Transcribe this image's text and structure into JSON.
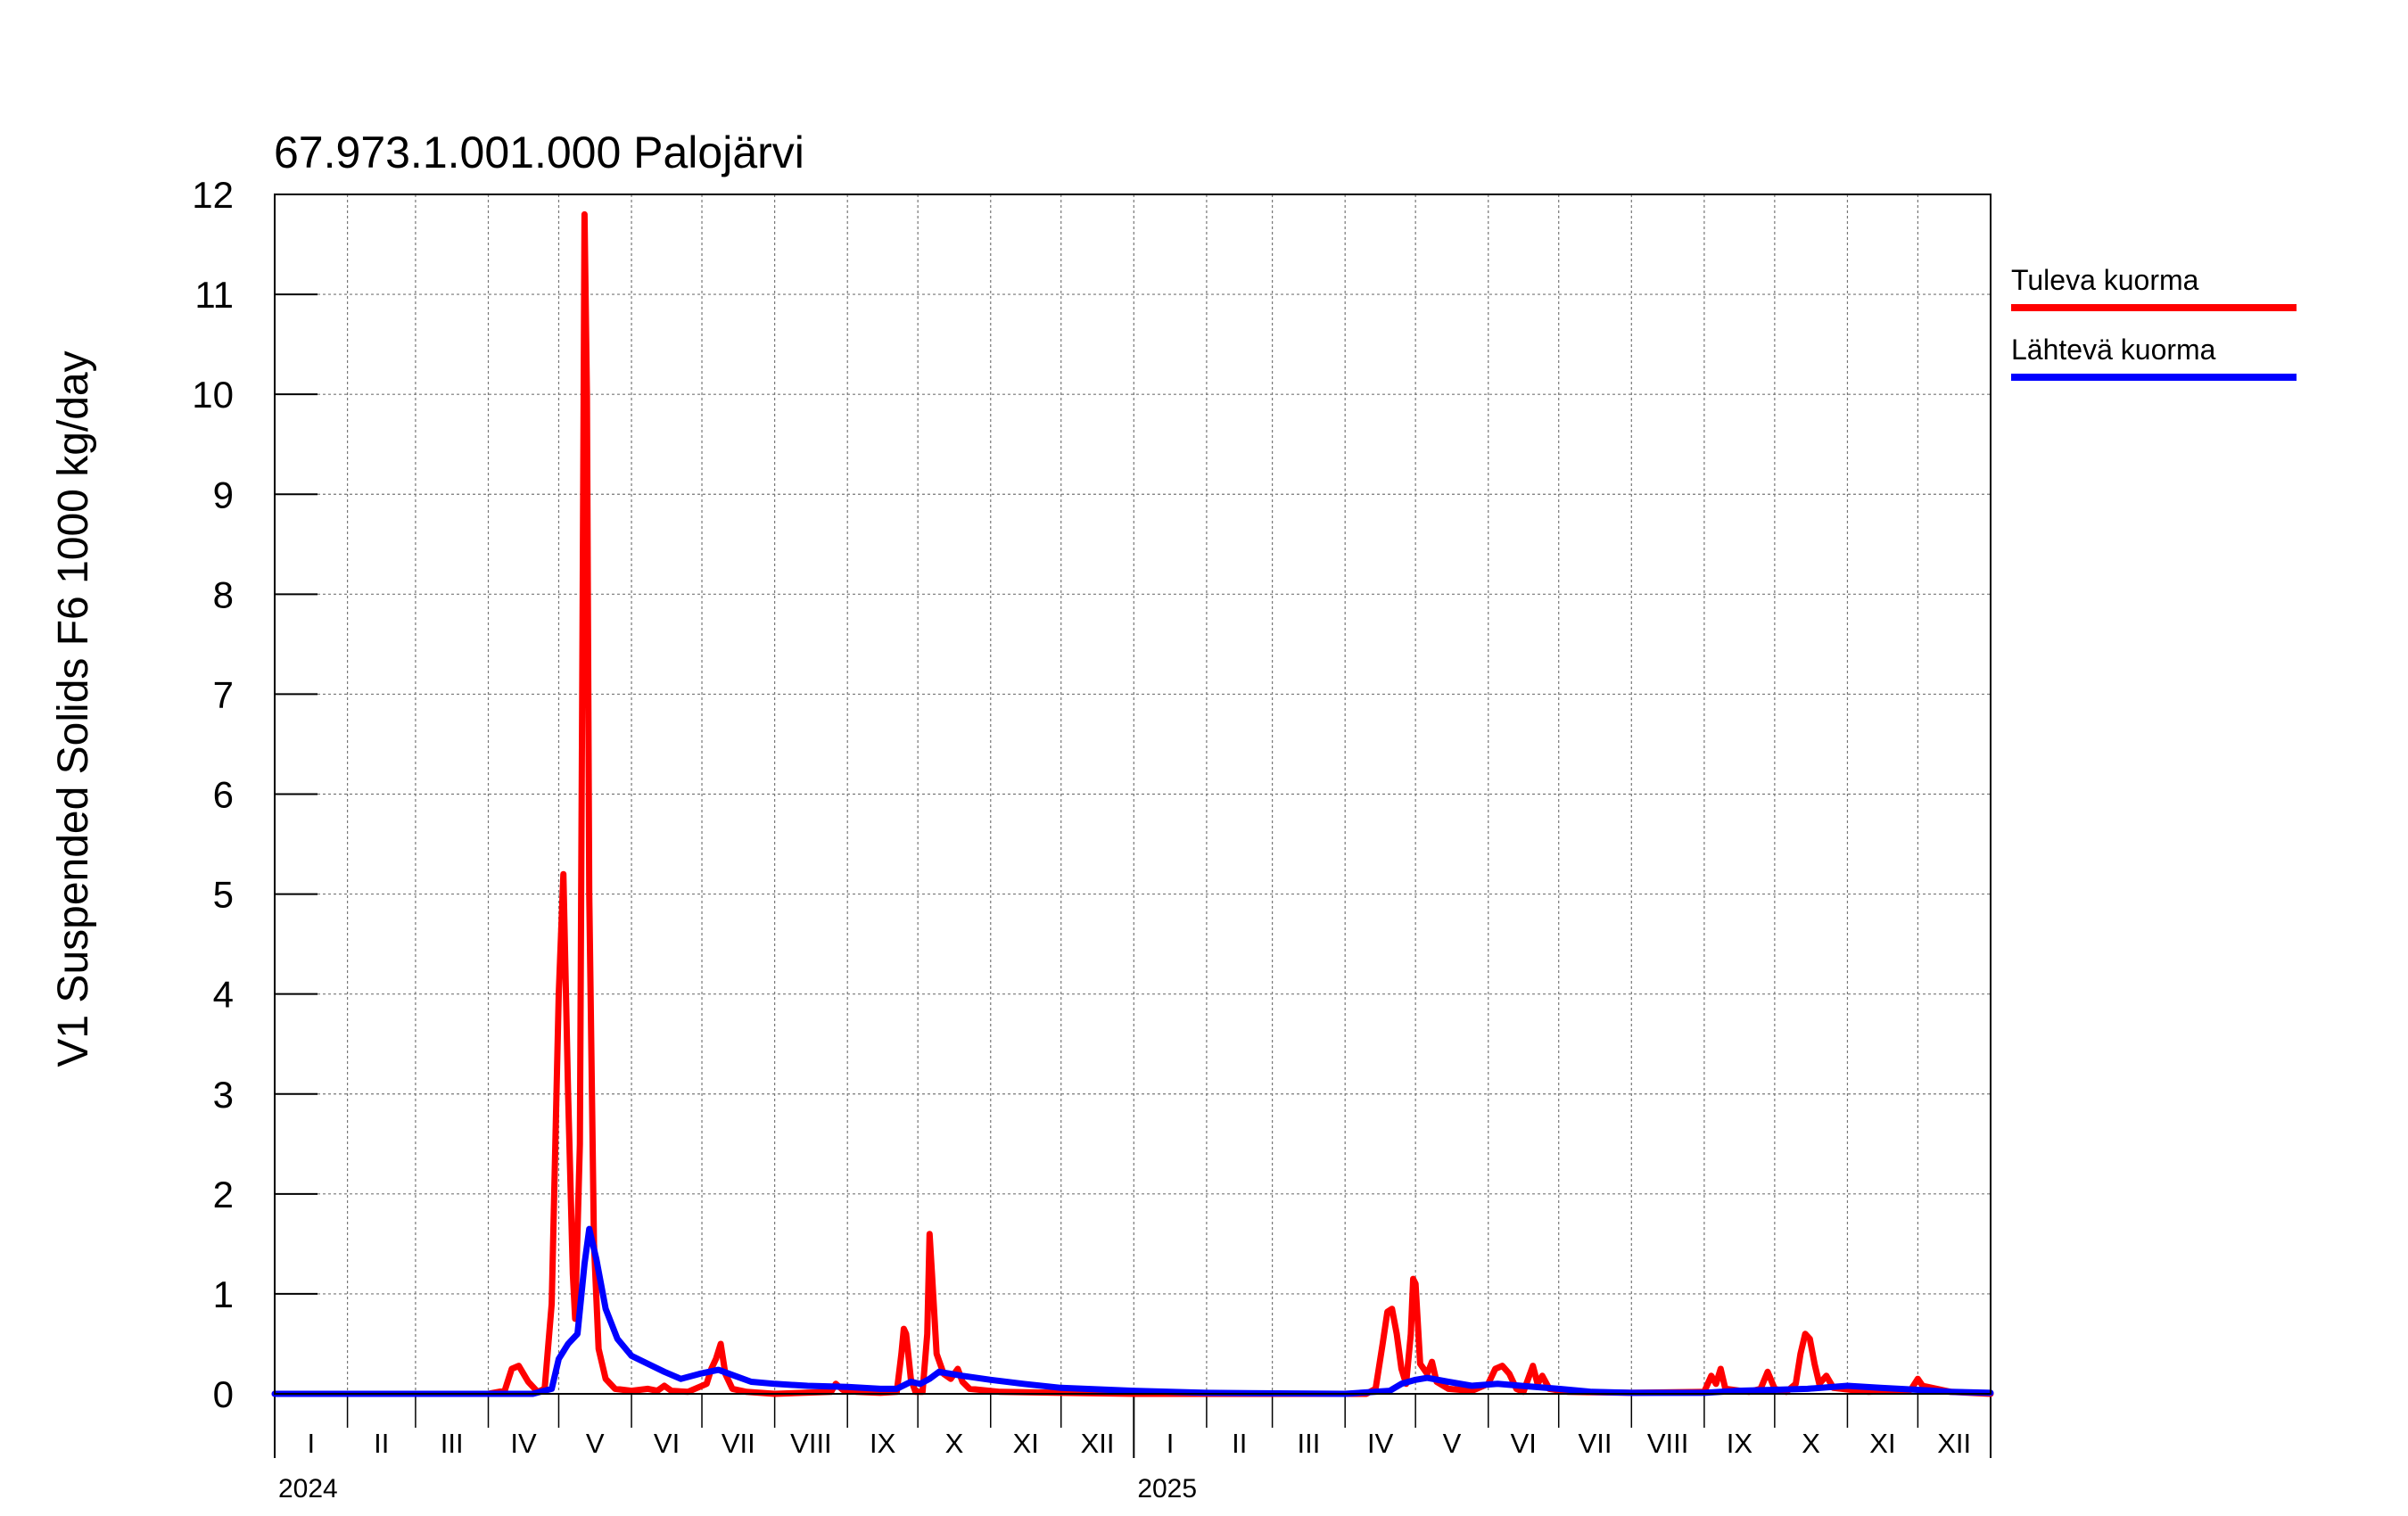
{
  "chart_data": {
    "type": "line",
    "title": "67.973.1.001.000 Palojärvi",
    "ylabel": "V1 Suspended Solids F6 1000 kg/day",
    "xlabel": "",
    "ylim": [
      0,
      12
    ],
    "yticks": [
      0,
      1,
      2,
      3,
      4,
      5,
      6,
      7,
      8,
      9,
      10,
      11,
      12
    ],
    "xlim": [
      "2024-01-01",
      "2026-01-01"
    ],
    "year_labels": [
      {
        "label": "2024",
        "date": "2024-01-01"
      },
      {
        "label": "2025",
        "date": "2025-01-01"
      }
    ],
    "month_labels": [
      "I",
      "II",
      "III",
      "IV",
      "V",
      "VI",
      "VII",
      "VIII",
      "IX",
      "X",
      "XI",
      "XII"
    ],
    "grid": true,
    "legend": "right",
    "series": [
      {
        "name": "Tuleva kuorma",
        "color": "#ff0000",
        "points": [
          [
            "2024-01-01",
            0.0
          ],
          [
            "2024-04-01",
            0.0
          ],
          [
            "2024-04-08",
            0.03
          ],
          [
            "2024-04-11",
            0.25
          ],
          [
            "2024-04-14",
            0.28
          ],
          [
            "2024-04-18",
            0.12
          ],
          [
            "2024-04-22",
            0.02
          ],
          [
            "2024-04-25",
            0.05
          ],
          [
            "2024-04-28",
            0.9
          ],
          [
            "2024-05-01",
            4.0
          ],
          [
            "2024-05-03",
            5.2
          ],
          [
            "2024-05-05",
            3.0
          ],
          [
            "2024-05-07",
            1.2
          ],
          [
            "2024-05-08",
            0.75
          ],
          [
            "2024-05-10",
            2.5
          ],
          [
            "2024-05-11",
            7.0
          ],
          [
            "2024-05-12",
            11.8
          ],
          [
            "2024-05-13",
            10.0
          ],
          [
            "2024-05-14",
            5.0
          ],
          [
            "2024-05-16",
            1.5
          ],
          [
            "2024-05-18",
            0.45
          ],
          [
            "2024-05-21",
            0.15
          ],
          [
            "2024-05-25",
            0.05
          ],
          [
            "2024-06-01",
            0.03
          ],
          [
            "2024-06-08",
            0.05
          ],
          [
            "2024-06-12",
            0.03
          ],
          [
            "2024-06-15",
            0.08
          ],
          [
            "2024-06-18",
            0.03
          ],
          [
            "2024-06-25",
            0.02
          ],
          [
            "2024-07-03",
            0.1
          ],
          [
            "2024-07-05",
            0.25
          ],
          [
            "2024-07-07",
            0.35
          ],
          [
            "2024-07-09",
            0.5
          ],
          [
            "2024-07-11",
            0.2
          ],
          [
            "2024-07-14",
            0.05
          ],
          [
            "2024-07-20",
            0.02
          ],
          [
            "2024-08-01",
            0.0
          ],
          [
            "2024-08-25",
            0.02
          ],
          [
            "2024-08-27",
            0.1
          ],
          [
            "2024-08-30",
            0.04
          ],
          [
            "2024-09-05",
            0.02
          ],
          [
            "2024-09-15",
            0.01
          ],
          [
            "2024-09-22",
            0.02
          ],
          [
            "2024-09-24",
            0.4
          ],
          [
            "2024-09-25",
            0.65
          ],
          [
            "2024-09-26",
            0.6
          ],
          [
            "2024-09-28",
            0.15
          ],
          [
            "2024-09-30",
            0.02
          ],
          [
            "2024-10-03",
            0.02
          ],
          [
            "2024-10-05",
            0.6
          ],
          [
            "2024-10-06",
            1.6
          ],
          [
            "2024-10-07",
            1.2
          ],
          [
            "2024-10-09",
            0.4
          ],
          [
            "2024-10-12",
            0.2
          ],
          [
            "2024-10-15",
            0.15
          ],
          [
            "2024-10-18",
            0.25
          ],
          [
            "2024-10-20",
            0.12
          ],
          [
            "2024-10-23",
            0.05
          ],
          [
            "2024-11-05",
            0.02
          ],
          [
            "2024-12-01",
            0.01
          ],
          [
            "2025-01-01",
            0.0
          ],
          [
            "2025-04-10",
            0.0
          ],
          [
            "2025-04-14",
            0.05
          ],
          [
            "2025-04-17",
            0.5
          ],
          [
            "2025-04-19",
            0.82
          ],
          [
            "2025-04-21",
            0.85
          ],
          [
            "2025-04-23",
            0.6
          ],
          [
            "2025-04-25",
            0.25
          ],
          [
            "2025-04-27",
            0.1
          ],
          [
            "2025-04-29",
            0.6
          ],
          [
            "2025-04-30",
            1.15
          ],
          [
            "2025-05-01",
            1.1
          ],
          [
            "2025-05-03",
            0.3
          ],
          [
            "2025-05-06",
            0.2
          ],
          [
            "2025-05-08",
            0.32
          ],
          [
            "2025-05-10",
            0.12
          ],
          [
            "2025-05-15",
            0.05
          ],
          [
            "2025-05-25",
            0.03
          ],
          [
            "2025-06-01",
            0.1
          ],
          [
            "2025-06-04",
            0.25
          ],
          [
            "2025-06-07",
            0.28
          ],
          [
            "2025-06-10",
            0.2
          ],
          [
            "2025-06-13",
            0.05
          ],
          [
            "2025-06-16",
            0.02
          ],
          [
            "2025-06-18",
            0.15
          ],
          [
            "2025-06-20",
            0.28
          ],
          [
            "2025-06-22",
            0.1
          ],
          [
            "2025-06-24",
            0.18
          ],
          [
            "2025-06-27",
            0.05
          ],
          [
            "2025-07-05",
            0.02
          ],
          [
            "2025-08-01",
            0.01
          ],
          [
            "2025-09-01",
            0.02
          ],
          [
            "2025-09-04",
            0.18
          ],
          [
            "2025-09-06",
            0.1
          ],
          [
            "2025-09-08",
            0.25
          ],
          [
            "2025-09-10",
            0.05
          ],
          [
            "2025-09-20",
            0.02
          ],
          [
            "2025-09-25",
            0.05
          ],
          [
            "2025-09-28",
            0.22
          ],
          [
            "2025-10-01",
            0.05
          ],
          [
            "2025-10-06",
            0.02
          ],
          [
            "2025-10-10",
            0.1
          ],
          [
            "2025-10-12",
            0.4
          ],
          [
            "2025-10-14",
            0.6
          ],
          [
            "2025-10-16",
            0.55
          ],
          [
            "2025-10-18",
            0.3
          ],
          [
            "2025-10-20",
            0.1
          ],
          [
            "2025-10-23",
            0.18
          ],
          [
            "2025-10-26",
            0.06
          ],
          [
            "2025-11-10",
            0.02
          ],
          [
            "2025-11-28",
            0.04
          ],
          [
            "2025-12-01",
            0.15
          ],
          [
            "2025-12-03",
            0.08
          ],
          [
            "2025-12-15",
            0.02
          ],
          [
            "2026-01-01",
            0.0
          ]
        ]
      },
      {
        "name": "Lähtevä kuorma",
        "color": "#0000ff",
        "points": [
          [
            "2024-01-01",
            0.0
          ],
          [
            "2024-04-20",
            0.0
          ],
          [
            "2024-04-28",
            0.05
          ],
          [
            "2024-05-01",
            0.35
          ],
          [
            "2024-05-05",
            0.5
          ],
          [
            "2024-05-09",
            0.6
          ],
          [
            "2024-05-12",
            1.3
          ],
          [
            "2024-05-14",
            1.65
          ],
          [
            "2024-05-17",
            1.35
          ],
          [
            "2024-05-21",
            0.85
          ],
          [
            "2024-05-26",
            0.55
          ],
          [
            "2024-06-01",
            0.38
          ],
          [
            "2024-06-08",
            0.3
          ],
          [
            "2024-06-15",
            0.22
          ],
          [
            "2024-06-22",
            0.15
          ],
          [
            "2024-06-30",
            0.2
          ],
          [
            "2024-07-08",
            0.24
          ],
          [
            "2024-07-15",
            0.18
          ],
          [
            "2024-07-22",
            0.12
          ],
          [
            "2024-08-01",
            0.1
          ],
          [
            "2024-08-15",
            0.08
          ],
          [
            "2024-09-01",
            0.07
          ],
          [
            "2024-09-15",
            0.05
          ],
          [
            "2024-09-22",
            0.05
          ],
          [
            "2024-09-28",
            0.12
          ],
          [
            "2024-10-02",
            0.1
          ],
          [
            "2024-10-06",
            0.15
          ],
          [
            "2024-10-10",
            0.22
          ],
          [
            "2024-10-20",
            0.18
          ],
          [
            "2024-11-01",
            0.14
          ],
          [
            "2024-11-15",
            0.1
          ],
          [
            "2024-12-01",
            0.06
          ],
          [
            "2025-01-01",
            0.03
          ],
          [
            "2025-02-01",
            0.01
          ],
          [
            "2025-04-01",
            0.0
          ],
          [
            "2025-04-20",
            0.03
          ],
          [
            "2025-04-25",
            0.1
          ],
          [
            "2025-05-01",
            0.14
          ],
          [
            "2025-05-06",
            0.16
          ],
          [
            "2025-05-15",
            0.12
          ],
          [
            "2025-05-25",
            0.08
          ],
          [
            "2025-06-05",
            0.1
          ],
          [
            "2025-06-15",
            0.08
          ],
          [
            "2025-07-01",
            0.05
          ],
          [
            "2025-07-15",
            0.02
          ],
          [
            "2025-08-01",
            0.01
          ],
          [
            "2025-09-01",
            0.01
          ],
          [
            "2025-09-15",
            0.03
          ],
          [
            "2025-10-01",
            0.04
          ],
          [
            "2025-10-15",
            0.05
          ],
          [
            "2025-11-01",
            0.08
          ],
          [
            "2025-11-15",
            0.06
          ],
          [
            "2025-12-01",
            0.04
          ],
          [
            "2025-12-15",
            0.02
          ],
          [
            "2026-01-01",
            0.01
          ]
        ]
      }
    ]
  }
}
